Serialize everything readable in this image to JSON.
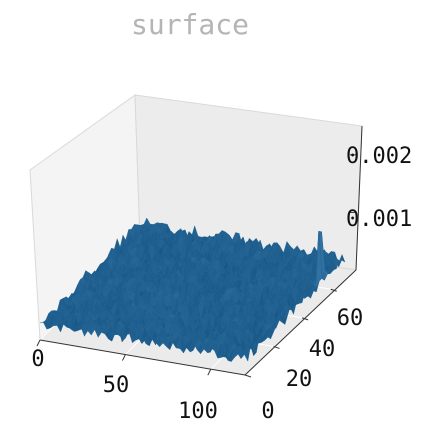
{
  "chart_data": {
    "type": "surface",
    "title": "surface",
    "xlabel": "",
    "ylabel": "",
    "zlabel": "",
    "x_ticks": [
      "0",
      "50",
      "100"
    ],
    "y_ticks": [
      "0",
      "20",
      "40",
      "60"
    ],
    "z_ticks": [
      "0.001",
      "0.002"
    ],
    "xlim": [
      0,
      120
    ],
    "ylim": [
      0,
      70
    ],
    "zlim": [
      0,
      0.0025
    ],
    "base_level": 0.0003,
    "noise_amplitude": 0.00012,
    "grid": true,
    "peak": {
      "x": 118,
      "y": 55,
      "z": 0.0023
    },
    "surface_color": "#1f5f8f",
    "pane_color": "#f2f2f2"
  }
}
